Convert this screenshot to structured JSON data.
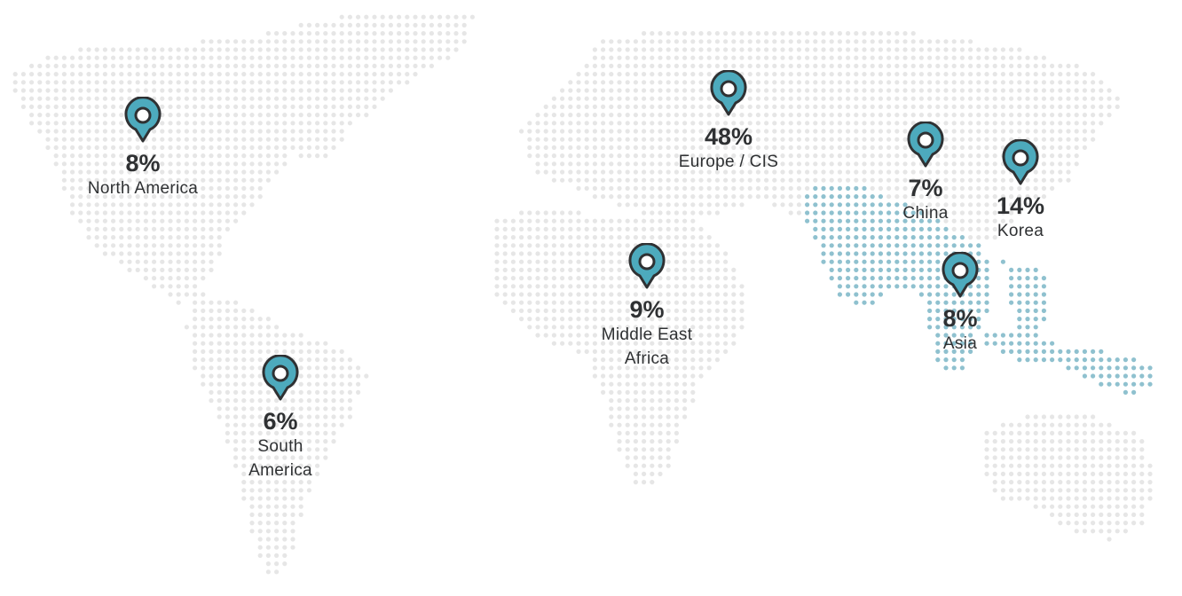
{
  "map": {
    "colors": {
      "land_dot": "#e6e6e6",
      "highlight_dot": "#8fc1cf",
      "pin_fill": "#4daabd",
      "pin_stroke": "#2f3133",
      "text": "#2f3133"
    },
    "icon": "map-pin-icon",
    "highlighted_area": "South & Southeast Asia"
  },
  "markers": [
    {
      "id": "north-america",
      "percent": "8%",
      "region_lines": [
        "North America"
      ]
    },
    {
      "id": "south-america",
      "percent": "6%",
      "region_lines": [
        "South",
        "America"
      ]
    },
    {
      "id": "europe-cis",
      "percent": "48%",
      "region_lines": [
        "Europe / CIS"
      ]
    },
    {
      "id": "middle-east-africa",
      "percent": "9%",
      "region_lines": [
        "Middle East",
        "Africa"
      ]
    },
    {
      "id": "china",
      "percent": "7%",
      "region_lines": [
        "China"
      ]
    },
    {
      "id": "korea",
      "percent": "14%",
      "region_lines": [
        "Korea"
      ]
    },
    {
      "id": "asia",
      "percent": "8%",
      "region_lines": [
        "Asia"
      ]
    }
  ]
}
